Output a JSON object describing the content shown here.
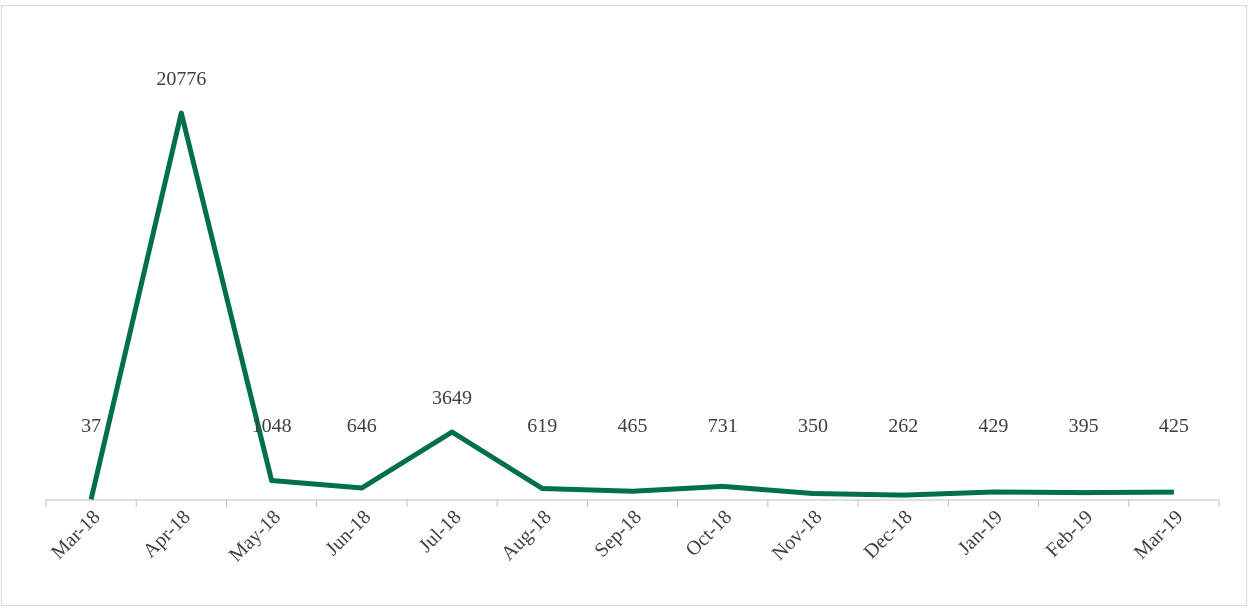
{
  "chart_data": {
    "type": "line",
    "categories": [
      "Mar-18",
      "Apr-18",
      "May-18",
      "Jun-18",
      "Jul-18",
      "Aug-18",
      "Sep-18",
      "Oct-18",
      "Nov-18",
      "Dec-18",
      "Jan-19",
      "Feb-19",
      "Mar-19"
    ],
    "values": [
      37,
      20776,
      1048,
      646,
      3649,
      619,
      465,
      731,
      350,
      262,
      429,
      395,
      425
    ],
    "color": "#006f4b"
  }
}
